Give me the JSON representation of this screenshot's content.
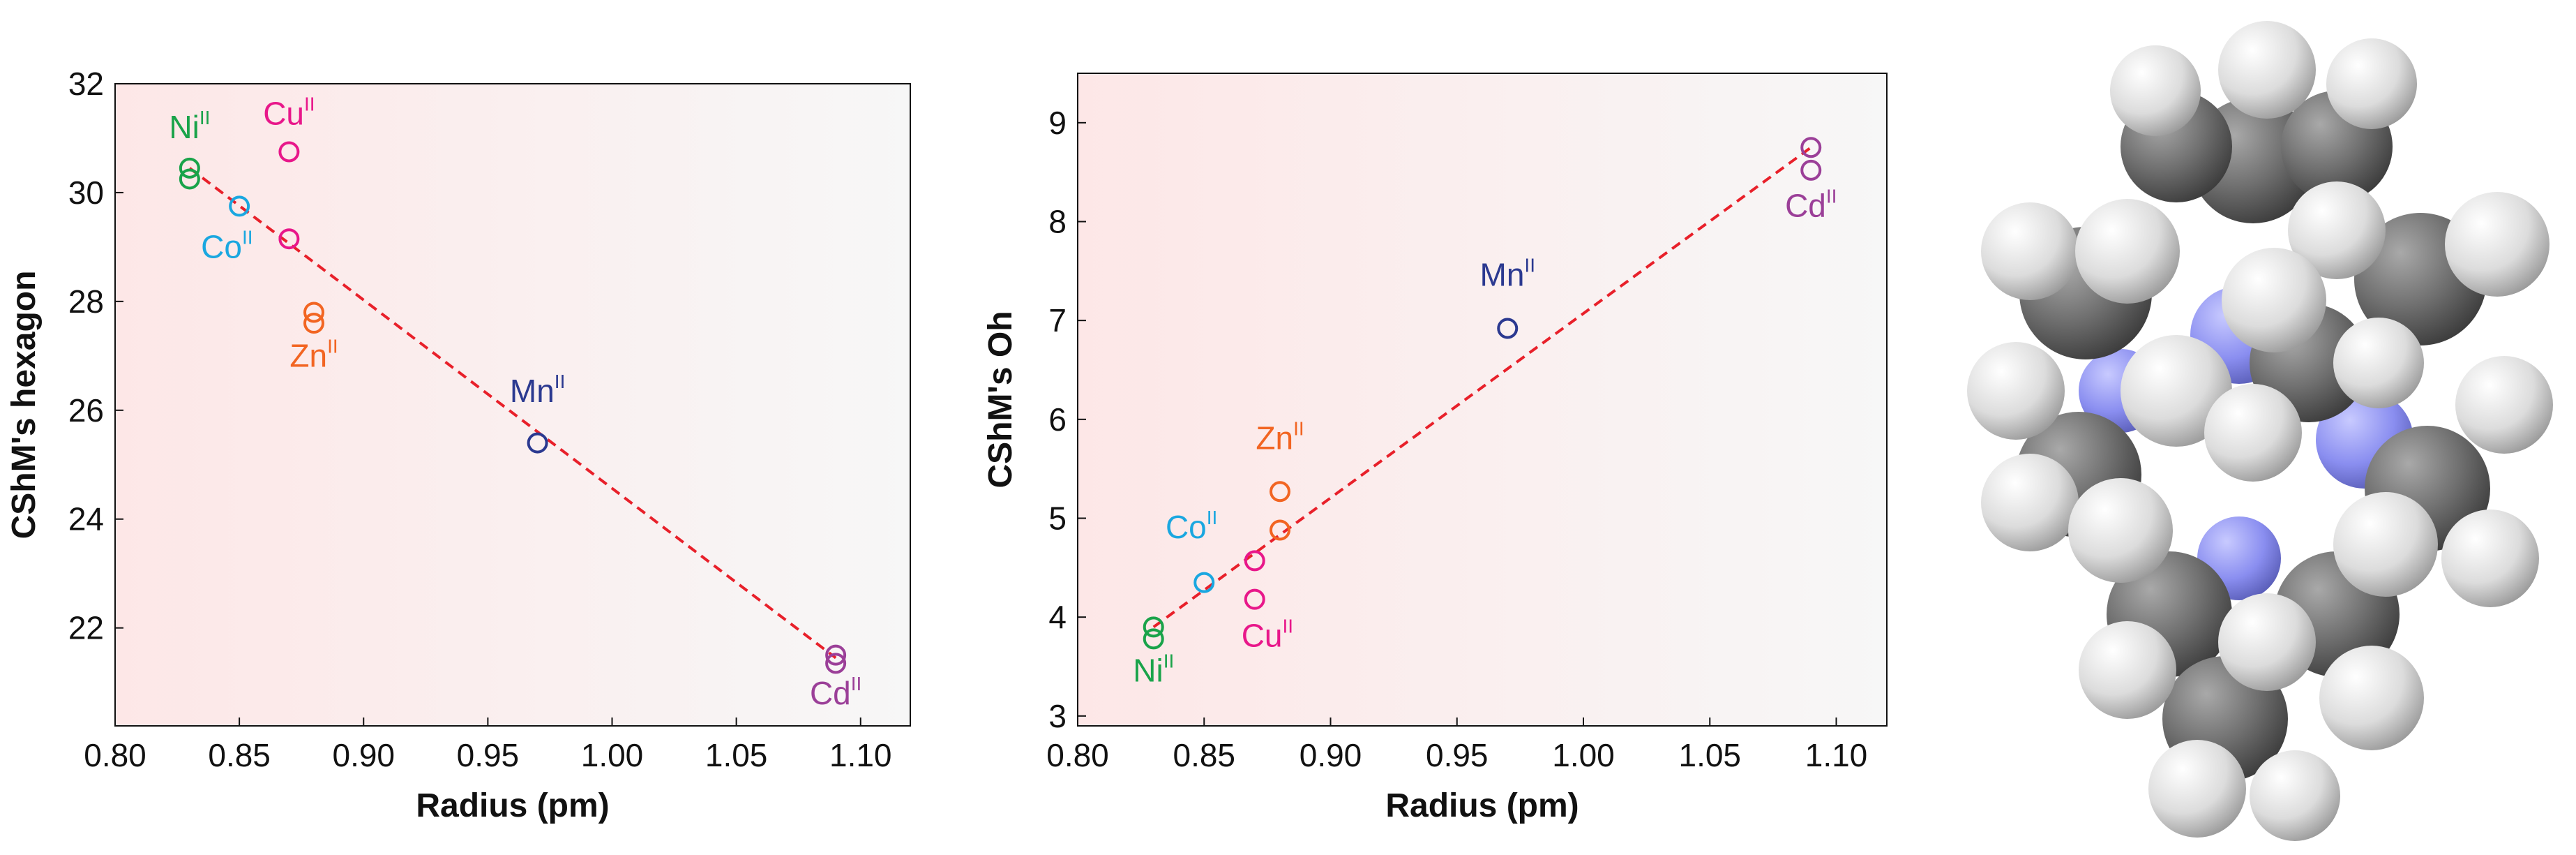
{
  "chart_data": [
    {
      "type": "scatter",
      "xlabel": "Radius (pm)",
      "ylabel": "CShM's hexagon",
      "xlim": [
        0.8,
        1.12
      ],
      "ylim": [
        20.2,
        32.0
      ],
      "xticks": [
        "0.80",
        "0.85",
        "0.90",
        "0.95",
        "1.00",
        "1.05",
        "1.10"
      ],
      "yticks": [
        "22",
        "24",
        "26",
        "28",
        "30",
        "32"
      ],
      "fit_line": {
        "x": [
          0.83,
          1.09
        ],
        "y": [
          30.45,
          21.45
        ],
        "color": "#e8202a",
        "style": "dashed"
      },
      "series": [
        {
          "name": "Ni",
          "ox": "II",
          "color": "#1aa34a",
          "points": [
            [
              0.83,
              30.45
            ],
            [
              0.83,
              30.25
            ]
          ],
          "label_xy": [
            0.83,
            31.0
          ]
        },
        {
          "name": "Cu",
          "ox": "II",
          "color": "#e8178a",
          "points": [
            [
              0.87,
              30.75
            ],
            [
              0.87,
              29.15
            ]
          ],
          "label_xy": [
            0.87,
            31.25
          ]
        },
        {
          "name": "Co",
          "ox": "II",
          "color": "#1aa7e0",
          "points": [
            [
              0.85,
              29.75
            ]
          ],
          "label_xy": [
            0.845,
            28.8
          ]
        },
        {
          "name": "Zn",
          "ox": "II",
          "color": "#f26522",
          "points": [
            [
              0.88,
              27.8
            ],
            [
              0.88,
              27.6
            ]
          ],
          "label_xy": [
            0.88,
            26.8
          ]
        },
        {
          "name": "Mn",
          "ox": "II",
          "color": "#2b3990",
          "points": [
            [
              0.97,
              25.4
            ]
          ],
          "label_xy": [
            0.97,
            26.15
          ]
        },
        {
          "name": "Cd",
          "ox": "II",
          "color": "#9b3f98",
          "points": [
            [
              1.09,
              21.5
            ],
            [
              1.09,
              21.35
            ]
          ],
          "label_xy": [
            1.09,
            20.6
          ]
        }
      ]
    },
    {
      "type": "scatter",
      "xlabel": "Radius (pm)",
      "ylabel": "CShM's Oh",
      "xlim": [
        0.8,
        1.12
      ],
      "ylim": [
        2.9,
        9.5
      ],
      "xticks": [
        "0.80",
        "0.85",
        "0.90",
        "0.95",
        "1.00",
        "1.05",
        "1.10"
      ],
      "yticks": [
        "3",
        "4",
        "5",
        "6",
        "7",
        "8",
        "9"
      ],
      "fit_line": {
        "x": [
          0.83,
          1.09
        ],
        "y": [
          3.9,
          8.75
        ],
        "color": "#e8202a",
        "style": "dashed"
      },
      "series": [
        {
          "name": "Ni",
          "ox": "II",
          "color": "#1aa34a",
          "points": [
            [
              0.83,
              3.9
            ],
            [
              0.83,
              3.78
            ]
          ],
          "label_xy": [
            0.83,
            3.35
          ]
        },
        {
          "name": "Co",
          "ox": "II",
          "color": "#1aa7e0",
          "points": [
            [
              0.85,
              4.35
            ]
          ],
          "label_xy": [
            0.845,
            4.8
          ]
        },
        {
          "name": "Cu",
          "ox": "II",
          "color": "#e8178a",
          "points": [
            [
              0.87,
              4.57
            ],
            [
              0.87,
              4.18
            ]
          ],
          "label_xy": [
            0.875,
            3.7
          ]
        },
        {
          "name": "Zn",
          "ox": "II",
          "color": "#f26522",
          "points": [
            [
              0.88,
              5.27
            ],
            [
              0.88,
              4.88
            ]
          ],
          "label_xy": [
            0.88,
            5.7
          ]
        },
        {
          "name": "Mn",
          "ox": "II",
          "color": "#2b3990",
          "points": [
            [
              0.97,
              6.92
            ]
          ],
          "label_xy": [
            0.97,
            7.35
          ]
        },
        {
          "name": "Cd",
          "ox": "II",
          "color": "#9b3f98",
          "points": [
            [
              1.09,
              8.75
            ],
            [
              1.09,
              8.52
            ]
          ],
          "label_xy": [
            1.09,
            8.05
          ]
        }
      ]
    }
  ],
  "molecule": {
    "kind": "space-filling model",
    "atom_colors": {
      "carbon": "#6d6d6d",
      "hydrogen": "#e6e6e6",
      "nitrogen": "#8a8ef0"
    }
  }
}
